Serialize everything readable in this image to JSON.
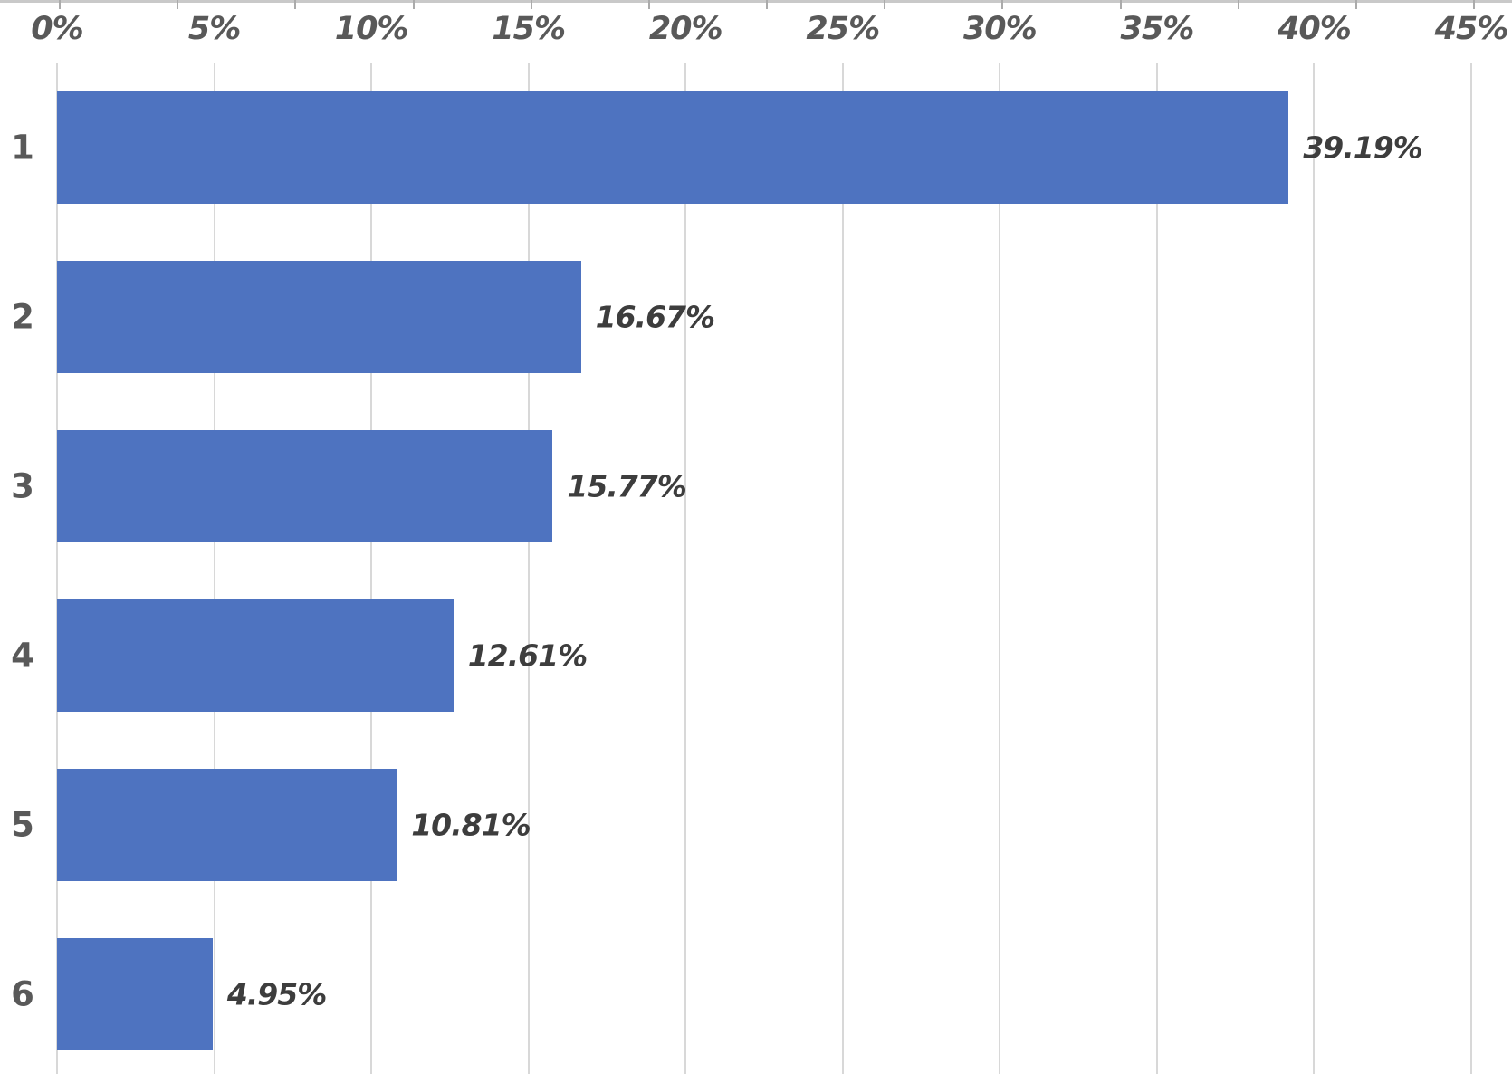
{
  "chart_data": {
    "type": "bar",
    "orientation": "horizontal",
    "title": "",
    "categories": [
      "1",
      "2",
      "3",
      "4",
      "5",
      "6"
    ],
    "values": [
      39.19,
      16.67,
      15.77,
      12.61,
      10.81,
      4.95
    ],
    "data_labels": [
      "39.19%",
      "16.67%",
      "15.77%",
      "12.61%",
      "10.81%",
      "4.95%"
    ],
    "x_axis": {
      "position": "top",
      "min": 0,
      "max": 45,
      "step": 5,
      "tick_labels": [
        "0%",
        "5%",
        "10%",
        "15%",
        "20%",
        "25%",
        "30%",
        "35%",
        "40%",
        "45%"
      ]
    },
    "grid": true,
    "legend": false,
    "colors": {
      "bar": "#4E73C0",
      "axis_label": "#595959",
      "category_label": "#595959",
      "data_label": "#3D3D3D",
      "gridline": "#D8D8D8",
      "top_border": "#C9C9C9",
      "top_tick": "#ABABAB",
      "background": "#FFFFFF"
    }
  }
}
